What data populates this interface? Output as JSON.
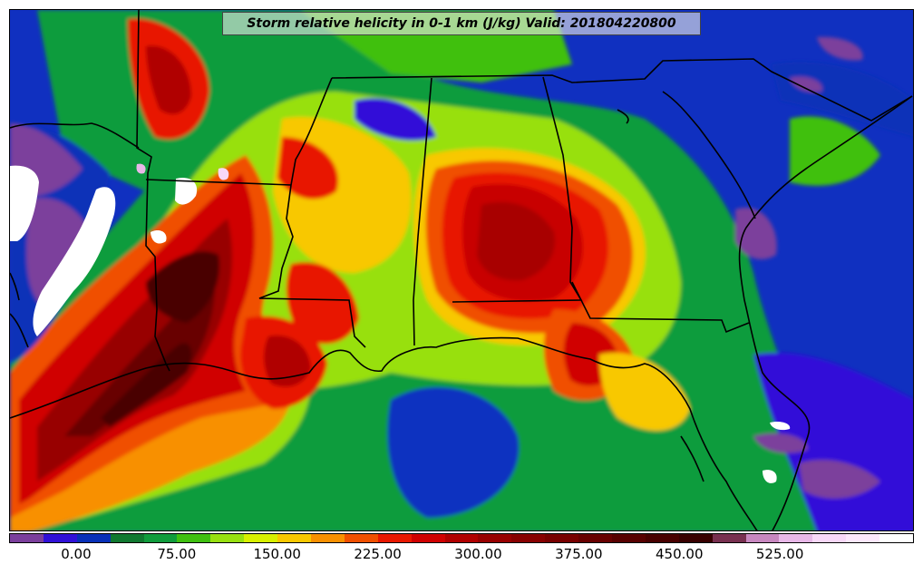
{
  "title": "Storm relative helicity in 0-1 km (J/kg) Valid: 201804220800",
  "colorbar": {
    "colors": [
      "#7b3f9c",
      "#3010d8",
      "#0830b8",
      "#107830",
      "#109c3c",
      "#40c010",
      "#98e010",
      "#d8f000",
      "#f8c800",
      "#f89000",
      "#f05000",
      "#e81800",
      "#d00000",
      "#b00000",
      "#980000",
      "#880000",
      "#780000",
      "#680000",
      "#580000",
      "#480000",
      "#380000",
      "#783050",
      "#c888c0",
      "#e8b8e8",
      "#f8d8f8",
      "#fce8fc",
      "#ffffff"
    ],
    "tick_labels": [
      "0.00",
      "75.00",
      "150.00",
      "225.00",
      "300.00",
      "375.00",
      "450.00",
      "525.00"
    ]
  }
}
